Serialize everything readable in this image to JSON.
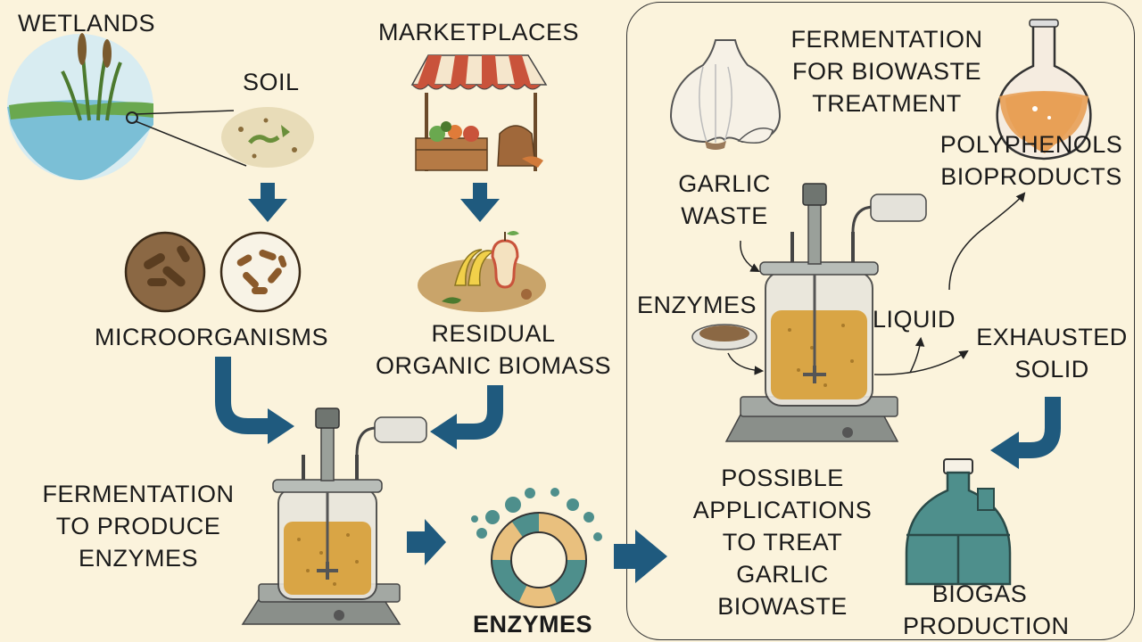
{
  "labels": {
    "wetlands": "WETLANDS",
    "soil": "SOIL",
    "marketplaces": "MARKETPLACES",
    "microorganisms": "MICROORGANISMS",
    "residual_biomass": [
      "RESIDUAL",
      "ORGANIC BIOMASS"
    ],
    "fermentation_enzymes": [
      "FERMENTATION",
      "TO PRODUCE",
      "ENZYMES"
    ],
    "enzymes_product": "ENZYMES",
    "possible_applications": [
      "POSSIBLE",
      "APPLICATIONS",
      "TO TREAT",
      "GARLIC",
      "BIOWASTE"
    ],
    "fermentation_biowaste": [
      "FERMENTATION",
      "FOR BIOWASTE",
      "TREATMENT"
    ],
    "garlic_waste": [
      "GARLIC",
      "WASTE"
    ],
    "enzymes_input": "ENZYMES",
    "liquid": "LIQUID",
    "polyphenols": [
      "POLYPHENOLS",
      "BIOPRODUCTS"
    ],
    "exhausted_solid": [
      "EXHAUSTED",
      "SOLID"
    ],
    "biogas": [
      "BIOGAS",
      "PRODUCTION"
    ]
  },
  "colors": {
    "background": "#fbf3dc",
    "arrow": "#1f5a7e",
    "broth": "#d9a545",
    "teal": "#4e8f8c",
    "tan": "#e9c07e"
  },
  "icons": [
    "wetland-scene-icon",
    "soil-sample-icon",
    "market-stall-icon",
    "microbe-dish-icon",
    "food-waste-icon",
    "bioreactor-icon",
    "enzyme-ring-icon",
    "garlic-icon",
    "petri-enzyme-icon",
    "flask-icon",
    "biogas-digester-icon"
  ]
}
